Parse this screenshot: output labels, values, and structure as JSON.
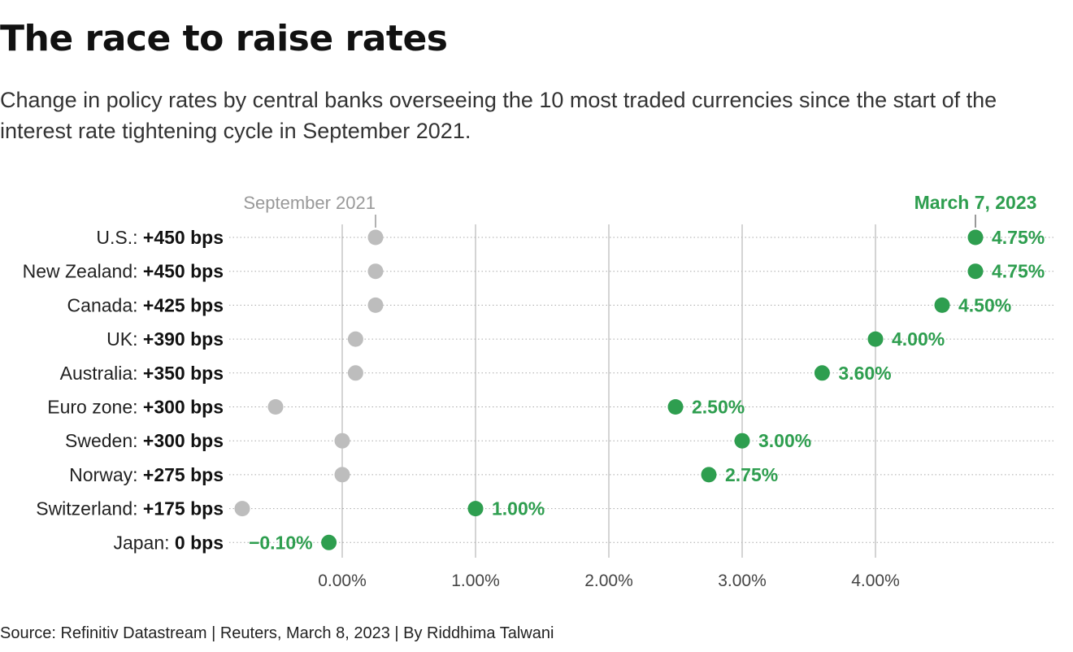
{
  "header": {
    "title": "The race to raise rates",
    "subtitle": "Change in policy rates by central banks overseeing the 10 most traded currencies since the start of the interest rate tightening cycle in September 2021."
  },
  "footer": {
    "source": "Source: Refinitiv Datastream | Reuters, March 8, 2023 | By Riddhima Talwani"
  },
  "colors": {
    "start": "#bdbdbd",
    "end": "#2e9e4f",
    "gridline": "#aaaaaa",
    "row_dots": "#aaaaaa",
    "text": "#111111",
    "muted": "#999999"
  },
  "chart_data": {
    "type": "dumbbell",
    "start_label": "September 2021",
    "end_label": "March 7, 2023",
    "xlim": [
      -0.85,
      5.3
    ],
    "x_ticks": [
      0,
      1,
      2,
      3,
      4
    ],
    "x_tick_labels": [
      "0.00%",
      "1.00%",
      "2.00%",
      "3.00%",
      "4.00%"
    ],
    "grid": true,
    "rows": [
      {
        "country": "U.S.:",
        "change": "+450 bps",
        "start": 0.25,
        "end": 4.75,
        "end_label": "4.75%"
      },
      {
        "country": "New Zealand:",
        "change": "+450 bps",
        "start": 0.25,
        "end": 4.75,
        "end_label": "4.75%"
      },
      {
        "country": "Canada:",
        "change": "+425 bps",
        "start": 0.25,
        "end": 4.5,
        "end_label": "4.50%"
      },
      {
        "country": "UK:",
        "change": "+390 bps",
        "start": 0.1,
        "end": 4.0,
        "end_label": "4.00%"
      },
      {
        "country": "Australia:",
        "change": "+350 bps",
        "start": 0.1,
        "end": 3.6,
        "end_label": "3.60%"
      },
      {
        "country": "Euro zone:",
        "change": "+300 bps",
        "start": -0.5,
        "end": 2.5,
        "end_label": "2.50%"
      },
      {
        "country": "Sweden:",
        "change": "+300 bps",
        "start": 0.0,
        "end": 3.0,
        "end_label": "3.00%"
      },
      {
        "country": "Norway:",
        "change": "+275 bps",
        "start": 0.0,
        "end": 2.75,
        "end_label": "2.75%"
      },
      {
        "country": "Switzerland:",
        "change": "+175 bps",
        "start": -0.75,
        "end": 1.0,
        "end_label": "1.00%"
      },
      {
        "country": "Japan:",
        "change": "0 bps",
        "start": -0.1,
        "end": -0.1,
        "end_label": "−0.10%"
      }
    ]
  }
}
